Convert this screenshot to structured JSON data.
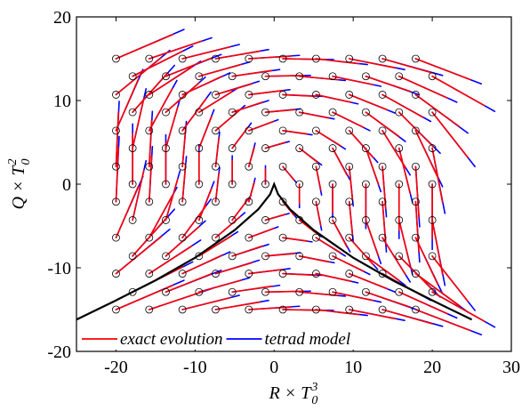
{
  "chart_data": {
    "type": "trajectory",
    "x_label": {
      "base": "R × T",
      "sub": "0",
      "sup": "3"
    },
    "y_label": {
      "base": "Q × T",
      "sub": "0",
      "sup": "2"
    },
    "xlim": [
      -25,
      30
    ],
    "xticks": [
      -20,
      -10,
      0,
      10,
      20,
      30
    ],
    "ylim": [
      -20,
      20
    ],
    "yticks": [
      -20,
      -10,
      0,
      10,
      20
    ],
    "legend": "lower center",
    "points": {
      "color": "#000000",
      "x": [
        -20,
        -15.8,
        -11.6,
        -7.4,
        -3.2,
        1.1,
        5.3,
        9.5,
        13.7,
        17.9,
        -17.9,
        -13.7,
        -9.5,
        -5.3,
        -1.1,
        3.2,
        7.4,
        11.6,
        15.8,
        20,
        -20,
        -15.8,
        -11.6,
        -7.4,
        -3.2,
        1.1,
        5.3,
        9.5,
        13.7,
        17.9,
        -17.9,
        -13.7,
        -9.5,
        -5.3,
        -1.1,
        3.2,
        7.4,
        11.6,
        15.8,
        20,
        -20,
        -15.8,
        -11.6,
        -7.4,
        -3.2,
        1.1,
        5.3,
        9.5,
        13.7,
        17.9,
        -17.9,
        -13.7,
        -9.5,
        -5.3,
        -1.1,
        3.2,
        7.4,
        11.6,
        15.8,
        20,
        -20,
        -15.8,
        -11.6,
        -7.4,
        -3.2,
        1.1,
        5.3,
        9.5,
        13.7,
        17.9,
        -17.9,
        -13.7,
        -9.5,
        -5.3,
        -1.1,
        3.2,
        7.4,
        11.6,
        15.8,
        20,
        -20,
        -15.8,
        -11.6,
        -7.4,
        -3.2,
        1.1,
        5.3,
        9.5,
        13.7,
        17.9,
        -17.9,
        -13.7,
        -9.5,
        -5.3,
        -1.1,
        3.2,
        7.4,
        11.6,
        15.8,
        20,
        -20,
        -15.8,
        -11.6,
        -7.4,
        -3.2,
        1.1,
        5.3,
        9.5,
        13.7,
        17.9,
        -17.9,
        -13.7,
        -9.5,
        -5.3,
        -1.1,
        3.2,
        7.4,
        11.6,
        15.8,
        20,
        -20,
        -15.8,
        -11.6,
        -7.4,
        -3.2,
        1.1,
        5.3,
        9.5,
        13.7,
        17.9,
        -17.9,
        -13.7,
        -9.5,
        -5.3,
        -1.1,
        3.2,
        7.4,
        11.6,
        15.8,
        20,
        -20,
        -15.8,
        -11.6,
        -7.4,
        -3.2,
        1.1,
        5.3,
        9.5,
        13.7,
        17.9
      ],
      "y": [
        15,
        15,
        15,
        15,
        15,
        15,
        15,
        15,
        15,
        15,
        12.9,
        12.9,
        12.9,
        12.9,
        12.9,
        12.9,
        12.9,
        12.9,
        12.9,
        12.9,
        10.7,
        10.7,
        10.7,
        10.7,
        10.7,
        10.7,
        10.7,
        10.7,
        10.7,
        10.7,
        8.6,
        8.6,
        8.6,
        8.6,
        8.6,
        8.6,
        8.6,
        8.6,
        8.6,
        8.6,
        6.4,
        6.4,
        6.4,
        6.4,
        6.4,
        6.4,
        6.4,
        6.4,
        6.4,
        6.4,
        4.3,
        4.3,
        4.3,
        4.3,
        4.3,
        4.3,
        4.3,
        4.3,
        4.3,
        4.3,
        2.1,
        2.1,
        2.1,
        2.1,
        2.1,
        2.1,
        2.1,
        2.1,
        2.1,
        2.1,
        0,
        0,
        0,
        0,
        0,
        0,
        0,
        0,
        0,
        0,
        -2.1,
        -2.1,
        -2.1,
        -2.1,
        -2.1,
        -2.1,
        -2.1,
        -2.1,
        -2.1,
        -2.1,
        -4.3,
        -4.3,
        -4.3,
        -4.3,
        -4.3,
        -4.3,
        -4.3,
        -4.3,
        -4.3,
        -4.3,
        -6.4,
        -6.4,
        -6.4,
        -6.4,
        -6.4,
        -6.4,
        -6.4,
        -6.4,
        -6.4,
        -6.4,
        -8.6,
        -8.6,
        -8.6,
        -8.6,
        -8.6,
        -8.6,
        -8.6,
        -8.6,
        -8.6,
        -8.6,
        -10.7,
        -10.7,
        -10.7,
        -10.7,
        -10.7,
        -10.7,
        -10.7,
        -10.7,
        -10.7,
        -10.7,
        -12.9,
        -12.9,
        -12.9,
        -12.9,
        -12.9,
        -12.9,
        -12.9,
        -12.9,
        -12.9,
        -12.9,
        -15,
        -15,
        -15,
        -15,
        -15,
        -15,
        -15,
        -15,
        -15,
        -15
      ]
    },
    "series": [
      {
        "name": "tetrad model",
        "color": "#0000ff",
        "x_end": [
          -11.4,
          -7.9,
          -4.4,
          -0.7,
          3.2,
          7.5,
          11.8,
          16.5,
          21.3,
          26.2,
          -10.3,
          -6.7,
          -3.1,
          0.7,
          4.6,
          9.0,
          13.5,
          18.3,
          23.1,
          27.9,
          -13.2,
          -9.3,
          -5.6,
          -1.9,
          2.0,
          6.1,
          10.6,
          15.3,
          19.8,
          24.5,
          -12.6,
          -8.7,
          -4.6,
          -0.7,
          3.3,
          7.6,
          12.1,
          16.6,
          21.0,
          25.4,
          -16.6,
          -12.3,
          -8.0,
          -3.7,
          0.5,
          4.8,
          9.0,
          13.1,
          17.2,
          21.3,
          -16.2,
          -11.9,
          -7.6,
          -2.9,
          1.9,
          6.0,
          9.6,
          13.5,
          17.5,
          21.6,
          -19.6,
          -15.4,
          -11.1,
          -6.9,
          -2.4,
          2.8,
          6.0,
          10.0,
          14.2,
          18.4,
          -17.9,
          -13.7,
          -9.5,
          -5.3,
          -1.1,
          3.2,
          7.4,
          11.6,
          15.8,
          20,
          -19.6,
          -15.4,
          -11.1,
          -6.9,
          -2.4,
          2.8,
          6.0,
          10.0,
          14.2,
          18.4,
          -16.2,
          -11.9,
          -7.6,
          -2.9,
          1.9,
          6.0,
          9.6,
          13.5,
          17.5,
          21.6,
          -16.6,
          -12.3,
          -8.0,
          -3.7,
          0.5,
          4.8,
          9.0,
          13.1,
          17.2,
          21.3,
          -12.6,
          -8.7,
          -4.6,
          -0.7,
          3.3,
          7.6,
          12.1,
          16.6,
          21.0,
          25.4,
          -13.2,
          -9.3,
          -5.6,
          -1.9,
          2.0,
          6.1,
          10.6,
          15.3,
          19.8,
          24.5,
          -10.3,
          -6.7,
          -3.1,
          0.7,
          4.6,
          9.0,
          13.5,
          18.3,
          23.1,
          27.9,
          -11.4,
          -7.9,
          -4.4,
          -0.7,
          3.2,
          7.5,
          11.8,
          16.5,
          21.3,
          26.2
        ],
        "y_end": [
          18.5,
          17.5,
          16.7,
          16.1,
          15.4,
          14.9,
          14.3,
          13.7,
          13.0,
          12.0,
          16.5,
          15.5,
          14.6,
          13.7,
          13.0,
          12.4,
          11.7,
          10.7,
          9.8,
          8.7,
          16.0,
          14.7,
          13.3,
          12.3,
          11.3,
          10.5,
          9.6,
          8.5,
          7.5,
          6.1,
          14.2,
          12.8,
          11.5,
          10.0,
          9.0,
          7.8,
          6.4,
          5.1,
          3.7,
          2.1,
          13.7,
          12.4,
          11.0,
          9.4,
          7.7,
          5.9,
          4.2,
          2.6,
          1.1,
          -0.3,
          11.4,
          10.2,
          8.9,
          7.3,
          5.1,
          2.3,
          0.5,
          -0.9,
          -2.2,
          -3.5,
          9.9,
          8.7,
          7.5,
          6.2,
          4.9,
          0.2,
          -1.3,
          -2.6,
          -3.9,
          -5.1,
          7.2,
          5.9,
          4.7,
          3.4,
          2.2,
          -2.8,
          -4.0,
          -5.3,
          -6.5,
          -7.8,
          5.7,
          4.5,
          3.3,
          2.0,
          0.7,
          -4.0,
          -5.5,
          -6.8,
          -8.1,
          -9.3,
          2.8,
          1.6,
          0.3,
          -1.3,
          -3.5,
          -6.3,
          -8.1,
          -9.5,
          -10.8,
          -12.1,
          0.9,
          -0.4,
          -1.8,
          -3.4,
          -5.1,
          -6.9,
          -8.6,
          -10.2,
          -11.7,
          -13.1,
          -3.0,
          -4.4,
          -5.7,
          -7.2,
          -8.2,
          -9.4,
          -10.8,
          -12.1,
          -13.5,
          -15.1,
          -5.4,
          -6.7,
          -8.1,
          -9.1,
          -10.1,
          -10.9,
          -11.8,
          -12.9,
          -13.9,
          -15.3,
          -9.3,
          -10.3,
          -11.2,
          -12.1,
          -12.8,
          -13.4,
          -14.1,
          -15.1,
          -16.0,
          -17.1,
          -11.5,
          -12.5,
          -13.3,
          -13.9,
          -14.6,
          -15.1,
          -15.7,
          -16.3,
          -17.0,
          -18.0
        ]
      },
      {
        "name": "exact evolution",
        "color": "#ff0000",
        "x_end": [
          -12.8,
          -9.2,
          -5.6,
          -1.8,
          2.1,
          6.4,
          10.7,
          15.3,
          20,
          24.8,
          -11.6,
          -7.9,
          -4.2,
          -0.3,
          3.7,
          8.0,
          12.5,
          17.2,
          21.9,
          26.6,
          -14.3,
          -10.4,
          -6.6,
          -2.8,
          1.1,
          5.3,
          9.7,
          14.3,
          18.8,
          23.4,
          -13.5,
          -9.5,
          -5.4,
          -1.5,
          2.6,
          6.9,
          11.3,
          15.8,
          20.1,
          24.5,
          -17.2,
          -12.9,
          -8.6,
          -4.3,
          -0.1,
          4.2,
          8.4,
          12.5,
          16.6,
          20.7,
          -16.5,
          -12.2,
          -7.9,
          -3.3,
          1.4,
          5.5,
          9.2,
          13.2,
          17.2,
          21.3,
          -19.7,
          -15.5,
          -11.2,
          -7.0,
          -2.5,
          2.5,
          5.9,
          9.9,
          14.1,
          18.3,
          -17.9,
          -13.7,
          -9.5,
          -5.3,
          -1.1,
          3.2,
          7.4,
          11.6,
          15.8,
          20,
          -19.7,
          -15.5,
          -11.2,
          -7.0,
          -2.5,
          2.5,
          5.9,
          9.9,
          14.1,
          18.3,
          -16.5,
          -12.2,
          -7.9,
          -3.3,
          1.4,
          5.5,
          9.2,
          13.2,
          17.2,
          21.3,
          -17.2,
          -12.9,
          -8.6,
          -4.3,
          -0.1,
          4.2,
          8.4,
          12.5,
          16.6,
          20.7,
          -13.5,
          -9.5,
          -5.4,
          -1.5,
          2.6,
          6.9,
          11.3,
          15.8,
          20.1,
          24.5,
          -14.3,
          -10.4,
          -6.6,
          -2.8,
          1.1,
          5.3,
          9.7,
          14.3,
          18.8,
          23.4,
          -11.6,
          -7.9,
          -4.2,
          -0.3,
          3.7,
          8.0,
          12.5,
          17.2,
          21.9,
          26.6,
          -12.8,
          -9.2,
          -5.6,
          -1.8,
          2.1,
          6.4,
          10.7,
          15.3,
          20,
          24.8
        ],
        "y_end": [
          17.9,
          17.1,
          16.4,
          15.9,
          15.3,
          14.9,
          14.4,
          13.9,
          13.3,
          12.5,
          15.9,
          15.1,
          14.3,
          13.6,
          13.0,
          12.5,
          11.9,
          11.1,
          10.3,
          9.4,
          15.1,
          14.0,
          12.9,
          12.0,
          11.2,
          10.5,
          9.8,
          8.9,
          8.0,
          6.9,
          13.3,
          12.1,
          11.0,
          9.8,
          8.9,
          7.9,
          6.8,
          5.7,
          4.5,
          3.2,
          12.5,
          11.4,
          10.2,
          8.9,
          7.5,
          6.0,
          4.6,
          3.2,
          2.0,
          0.8,
          10.2,
          9.2,
          8.1,
          6.8,
          5.0,
          2.6,
          1.1,
          0.0,
          -1.1,
          -2.2,
          8.6,
          7.6,
          6.6,
          5.5,
          4.4,
          0.5,
          -0.7,
          -1.8,
          -2.9,
          -3.9,
          6.0,
          4.9,
          3.9,
          2.8,
          1.8,
          -2.3,
          -3.4,
          -4.4,
          -5.5,
          -6.5,
          4.4,
          3.4,
          2.4,
          1.3,
          0.2,
          -3.7,
          -4.9,
          -6.0,
          -7.1,
          -8.1,
          1.6,
          0.6,
          -0.5,
          -1.8,
          -3.6,
          -6.0,
          -7.5,
          -8.6,
          -9.7,
          -10.8,
          -0.3,
          -1.4,
          -2.6,
          -3.9,
          -5.3,
          -6.8,
          -8.2,
          -9.6,
          -10.8,
          -12.0,
          -3.9,
          -5.1,
          -6.2,
          -7.4,
          -8.3,
          -9.3,
          -10.4,
          -11.5,
          -12.7,
          -14.0,
          -6.3,
          -7.4,
          -8.5,
          -9.4,
          -10.2,
          -10.9,
          -11.6,
          -12.5,
          -13.4,
          -14.5,
          -9.9,
          -10.7,
          -11.5,
          -12.2,
          -12.8,
          -13.3,
          -13.9,
          -14.7,
          -15.5,
          -16.4,
          -12.1,
          -12.9,
          -13.6,
          -14.1,
          -14.7,
          -15.1,
          -15.6,
          -16.1,
          -16.7,
          -17.5
        ]
      }
    ],
    "curve": {
      "color": "#000000",
      "x": [
        -25,
        -20,
        -15,
        -10,
        -5,
        -2,
        -0.5,
        0,
        0.5,
        2,
        5,
        10,
        15,
        20,
        25
      ],
      "y": [
        -16.2,
        -13.9,
        -11.5,
        -8.8,
        -5.5,
        -3.0,
        -1.2,
        0,
        -1.2,
        -3.0,
        -5.5,
        -8.8,
        -11.5,
        -13.9,
        -16.2
      ]
    }
  }
}
